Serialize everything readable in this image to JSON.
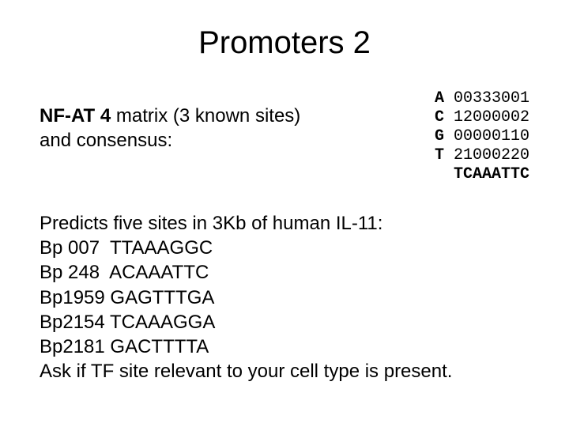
{
  "title": "Promoters 2",
  "description": {
    "bold": "NF-AT 4",
    "rest1": "  matrix (3 known sites)",
    "rest2": "and consensus:"
  },
  "matrix": {
    "rows": [
      {
        "letter": "A",
        "digits": " 00333001"
      },
      {
        "letter": "C",
        "digits": " 12000002"
      },
      {
        "letter": "G",
        "digits": " 00000110"
      },
      {
        "letter": "T",
        "digits": " 21000220"
      }
    ],
    "consensus_indent": "  ",
    "consensus": "TCAAATTC"
  },
  "predictions": {
    "heading": "Predicts five sites in 3Kb of human IL-11:",
    "sites": [
      "Bp 007  TTAAAGGC",
      "Bp 248  ACAAATTC",
      "Bp1959 GAGTTTGA",
      "Bp2154 TCAAAGGA",
      "Bp2181 GACTTTTA"
    ],
    "footer": "Ask if TF site relevant to your cell type is present."
  },
  "colors": {
    "background": "#ffffff",
    "text": "#000000"
  },
  "fonts": {
    "title_size_pt": 40,
    "body_size_pt": 24,
    "mono_size_pt": 20
  }
}
